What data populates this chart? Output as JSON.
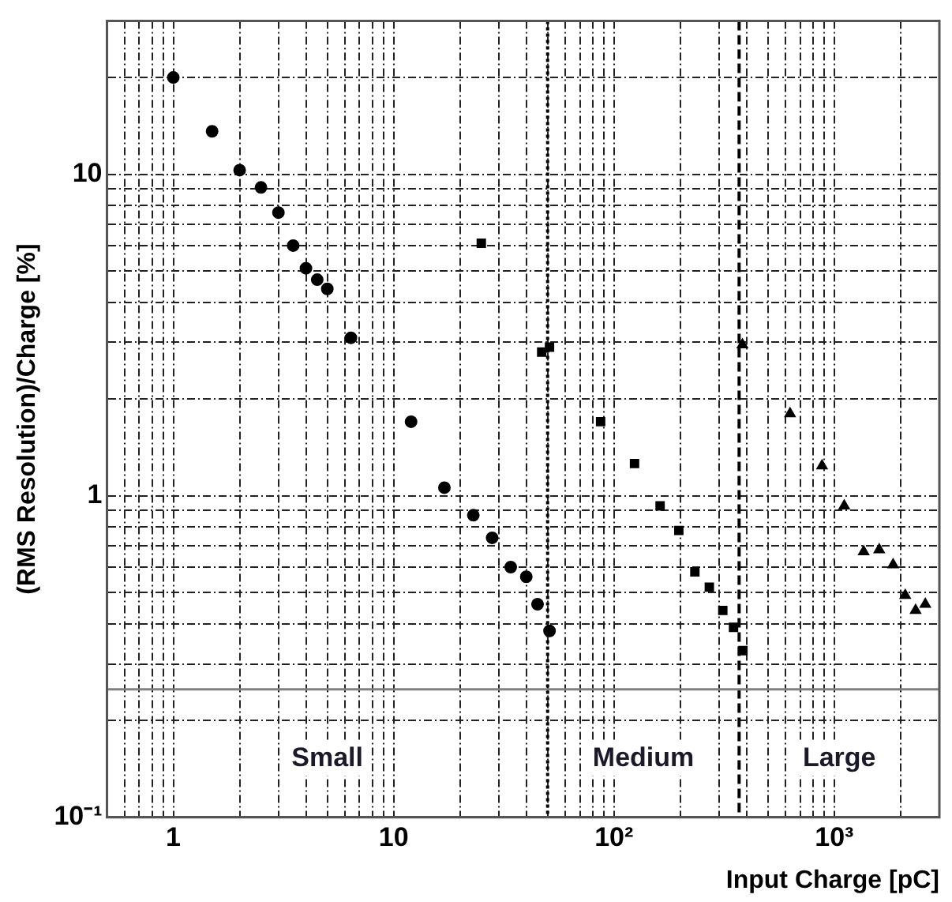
{
  "chart_data": {
    "type": "scatter",
    "xlabel": "Input Charge [pC]",
    "ylabel": "(RMS Resolution)/Charge [%]",
    "log": "xy",
    "grid": true,
    "legend": false,
    "xlim": [
      0.5,
      3000
    ],
    "ylim": [
      0.1,
      30
    ],
    "xticks": [
      {
        "value": 0.5,
        "label": null
      },
      {
        "value": 0.6,
        "label": null
      },
      {
        "value": 0.7,
        "label": null
      },
      {
        "value": 0.8,
        "label": null
      },
      {
        "value": 0.9,
        "label": null
      },
      1,
      {
        "value": 2,
        "label": null
      },
      {
        "value": 3,
        "label": null
      },
      {
        "value": 4,
        "label": null
      },
      {
        "value": 5,
        "label": null
      },
      {
        "value": 6,
        "label": null
      },
      {
        "value": 7,
        "label": null
      },
      {
        "value": 8,
        "label": null
      },
      {
        "value": 9,
        "label": null
      },
      10,
      {
        "value": 20,
        "label": null
      },
      {
        "value": 30,
        "label": null
      },
      {
        "value": 40,
        "label": null
      },
      {
        "value": 50,
        "label": null
      },
      {
        "value": 60,
        "label": null
      },
      {
        "value": 70,
        "label": null
      },
      {
        "value": 80,
        "label": null
      },
      {
        "value": 90,
        "label": null
      },
      {
        "value": 100,
        "label": "10²"
      },
      {
        "value": 200,
        "label": null
      },
      {
        "value": 300,
        "label": null
      },
      {
        "value": 400,
        "label": null
      },
      {
        "value": 500,
        "label": null
      },
      {
        "value": 600,
        "label": null
      },
      {
        "value": 700,
        "label": null
      },
      {
        "value": 800,
        "label": null
      },
      {
        "value": 900,
        "label": null
      },
      {
        "value": 1000,
        "label": "10³"
      },
      {
        "value": 2000,
        "label": null
      },
      {
        "value": 3000,
        "label": null
      }
    ],
    "yticks": [
      {
        "value": 0.1,
        "label": "10⁻¹"
      },
      {
        "value": 0.2,
        "label": null
      },
      {
        "value": 0.3,
        "label": null
      },
      {
        "value": 0.4,
        "label": null
      },
      {
        "value": 0.5,
        "label": null
      },
      {
        "value": 0.6,
        "label": null
      },
      {
        "value": 0.7,
        "label": null
      },
      {
        "value": 0.8,
        "label": null
      },
      {
        "value": 0.9,
        "label": null
      },
      1,
      {
        "value": 2,
        "label": null
      },
      {
        "value": 3,
        "label": null
      },
      {
        "value": 4,
        "label": null
      },
      {
        "value": 5,
        "label": null
      },
      {
        "value": 6,
        "label": null
      },
      {
        "value": 7,
        "label": null
      },
      {
        "value": 8,
        "label": null
      },
      {
        "value": 9,
        "label": null
      },
      10,
      {
        "value": 20,
        "label": null
      },
      {
        "value": 30,
        "label": null
      }
    ],
    "series": [
      {
        "color": "#000000",
        "marker": "circle",
        "x": [
          1,
          1.5,
          2,
          2.5,
          3,
          3.5,
          4,
          4.5,
          5,
          6.4,
          12,
          17,
          23,
          28,
          34,
          40,
          45,
          51
        ],
        "values": [
          20,
          13.6,
          10.3,
          9.1,
          7.6,
          6.0,
          5.1,
          4.7,
          4.4,
          3.1,
          1.7,
          1.06,
          0.87,
          0.74,
          0.6,
          0.56,
          0.46,
          0.38
        ]
      },
      {
        "color": "#000000",
        "marker": "square",
        "x": [
          25,
          47,
          51,
          87,
          124,
          162,
          197,
          233,
          271,
          312,
          349,
          385
        ],
        "values": [
          6.1,
          2.8,
          2.9,
          1.7,
          1.26,
          0.93,
          0.78,
          0.58,
          0.52,
          0.44,
          0.39,
          0.33
        ]
      },
      {
        "color": "#000000",
        "marker": "triangle",
        "x": [
          383,
          630,
          880,
          1110,
          1360,
          1600,
          1850,
          2100,
          2340,
          2590
        ],
        "values": [
          2.95,
          1.8,
          1.24,
          0.93,
          0.67,
          0.68,
          0.61,
          0.49,
          0.44,
          0.46
        ]
      }
    ],
    "ref_lines": [
      {
        "axis": "x",
        "value": 50,
        "color": "#000000",
        "line_style": "dotted"
      },
      {
        "axis": "x",
        "value": 370,
        "color": "#000000",
        "line_style": "dashed"
      },
      {
        "axis": "y",
        "value": 0.25,
        "color": "#808080",
        "line_style": "solid"
      }
    ],
    "annotations": [
      "Small",
      "Medium",
      "Large"
    ]
  }
}
